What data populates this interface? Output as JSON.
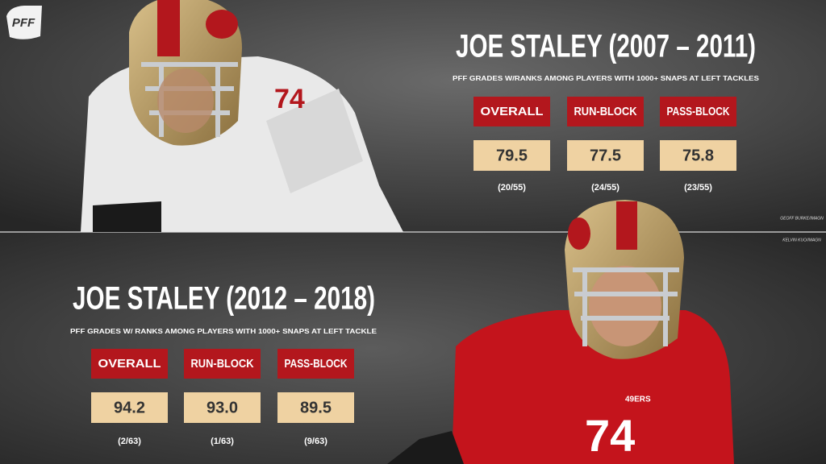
{
  "logo": "PFF",
  "panels": [
    {
      "title": "JOE STALEY (2007 – 2011)",
      "subtitle": "PFF GRADES W/RANKS AMONG PLAYERS WITH 1000+ SNAPS AT LEFT TACKLES",
      "grades": [
        {
          "label": "OVERALL",
          "value": "79.5",
          "rank": "(20/55)"
        },
        {
          "label": "RUN-BLOCK",
          "value": "77.5",
          "rank": "(24/55)"
        },
        {
          "label": "PASS-BLOCK",
          "value": "75.8",
          "rank": "(23/55)"
        }
      ],
      "credit": "GEOFF BURKE/IMAGN"
    },
    {
      "title": "JOE STALEY (2012 – 2018)",
      "subtitle": "PFF GRADES W/ RANKS AMONG PLAYERS WITH 1000+ SNAPS AT LEFT TACKLE",
      "grades": [
        {
          "label": "OVERALL",
          "value": "94.2",
          "rank": "(2/63)"
        },
        {
          "label": "RUN-BLOCK",
          "value": "93.0",
          "rank": "(1/63)"
        },
        {
          "label": "PASS-BLOCK",
          "value": "89.5",
          "rank": "(9/63)"
        }
      ],
      "credit": "KELVIN KUO/IMAGN"
    }
  ]
}
